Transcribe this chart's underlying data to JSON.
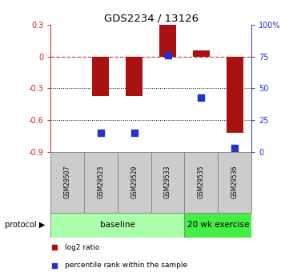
{
  "title": "GDS2234 / 13126",
  "samples": [
    "GSM29507",
    "GSM29523",
    "GSM29529",
    "GSM29533",
    "GSM29535",
    "GSM29536"
  ],
  "log2_ratio": [
    0.0,
    -0.37,
    -0.37,
    0.3,
    0.06,
    -0.72
  ],
  "percentile_rank": [
    null,
    15,
    15,
    76,
    43,
    3
  ],
  "ylim_left": [
    -0.9,
    0.3
  ],
  "ylim_right": [
    0,
    100
  ],
  "yticks_left": [
    -0.9,
    -0.6,
    -0.3,
    0.0,
    0.3
  ],
  "yticks_right": [
    0,
    25,
    50,
    75,
    100
  ],
  "ytick_labels_left": [
    "-0.9",
    "-0.6",
    "-0.3",
    "0",
    "0.3"
  ],
  "ytick_labels_right": [
    "0",
    "25",
    "50",
    "75",
    "100%"
  ],
  "hlines": [
    -0.3,
    -0.6
  ],
  "zero_line": 0.0,
  "bar_color": "#aa1111",
  "dot_color": "#2233cc",
  "bar_width": 0.5,
  "dot_size": 40,
  "background_color": "#ffffff",
  "plot_bg_color": "#ffffff",
  "protocol_groups": [
    {
      "label": "baseline",
      "start": 0,
      "end": 3,
      "color": "#aaffaa"
    },
    {
      "label": "20 wk exercise",
      "start": 4,
      "end": 5,
      "color": "#44ee44"
    }
  ],
  "legend_items": [
    {
      "label": "log2 ratio",
      "color": "#aa1111"
    },
    {
      "label": "percentile rank within the sample",
      "color": "#2233cc"
    }
  ],
  "protocol_label": "protocol",
  "left_axis_color": "#cc2222",
  "right_axis_color": "#2233cc",
  "sample_cell_color": "#cccccc",
  "sample_border_color": "#888888"
}
